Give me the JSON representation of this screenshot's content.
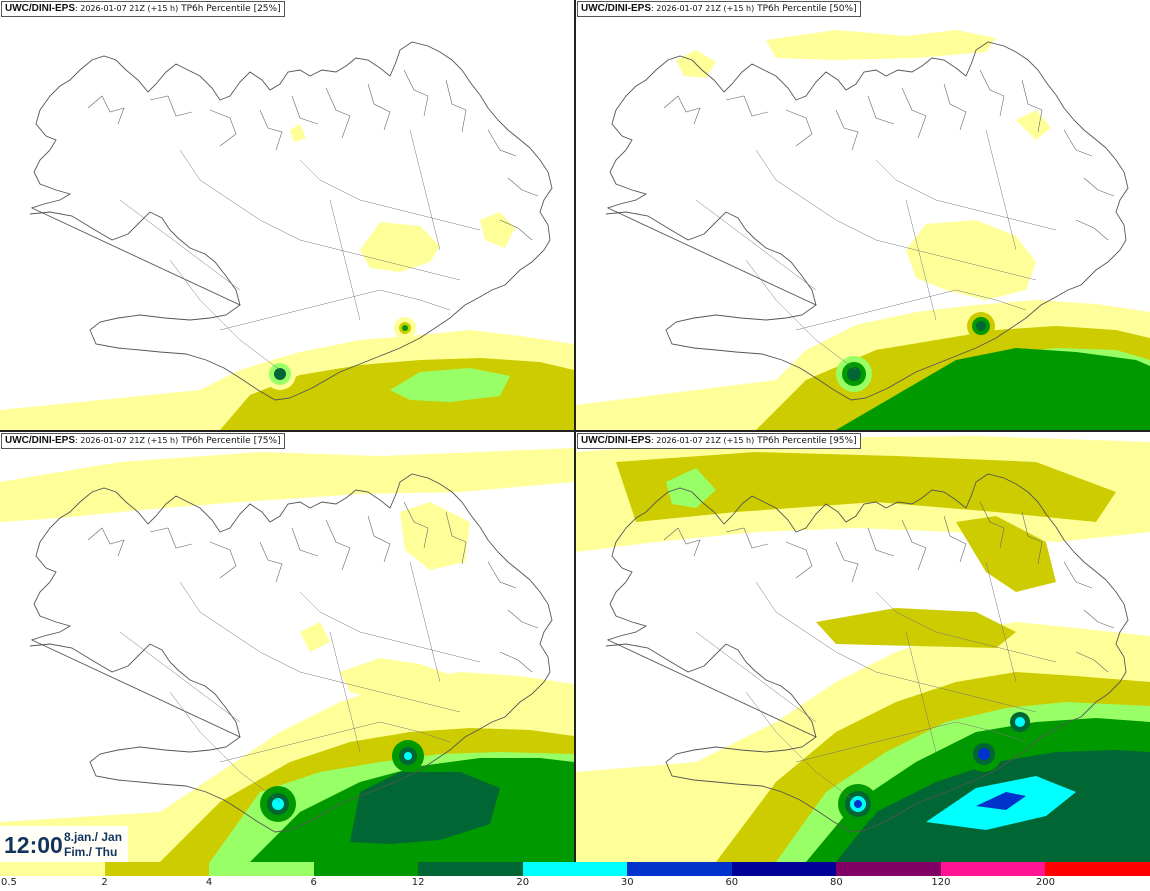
{
  "panels": [
    {
      "model": "UWC/DINI-EPS",
      "run": ": 2026-01-07 21Z (+15 h)",
      "field": "TP6h Percentile [25%]",
      "percentile": 25
    },
    {
      "model": "UWC/DINI-EPS",
      "run": ": 2026-01-07 21Z (+15 h)",
      "field": "TP6h Percentile [50%]",
      "percentile": 50
    },
    {
      "model": "UWC/DINI-EPS",
      "run": ": 2026-01-07 21Z (+15 h)",
      "field": "TP6h Percentile [75%]",
      "percentile": 75
    },
    {
      "model": "UWC/DINI-EPS",
      "run": ": 2026-01-07 21Z (+15 h)",
      "field": "TP6h Percentile [95%]",
      "percentile": 95
    }
  ],
  "valid_time": {
    "time": "12:00",
    "date_line1": "8.jan./ Jan",
    "date_line2": "Fim./ Thu"
  },
  "colorbar": {
    "colors": [
      "#ffff99",
      "#cccc00",
      "#99ff66",
      "#009900",
      "#006633",
      "#00ffff",
      "#0033cc",
      "#000099",
      "#800066",
      "#ff1493",
      "#ff0000"
    ],
    "ticks": [
      "0.5",
      "2",
      "4",
      "6",
      "12",
      "20",
      "30",
      "60",
      "80",
      "120",
      "200"
    ]
  },
  "colors": {
    "border": "#555555",
    "coastline": "#444444",
    "time_text": "#13335f"
  }
}
